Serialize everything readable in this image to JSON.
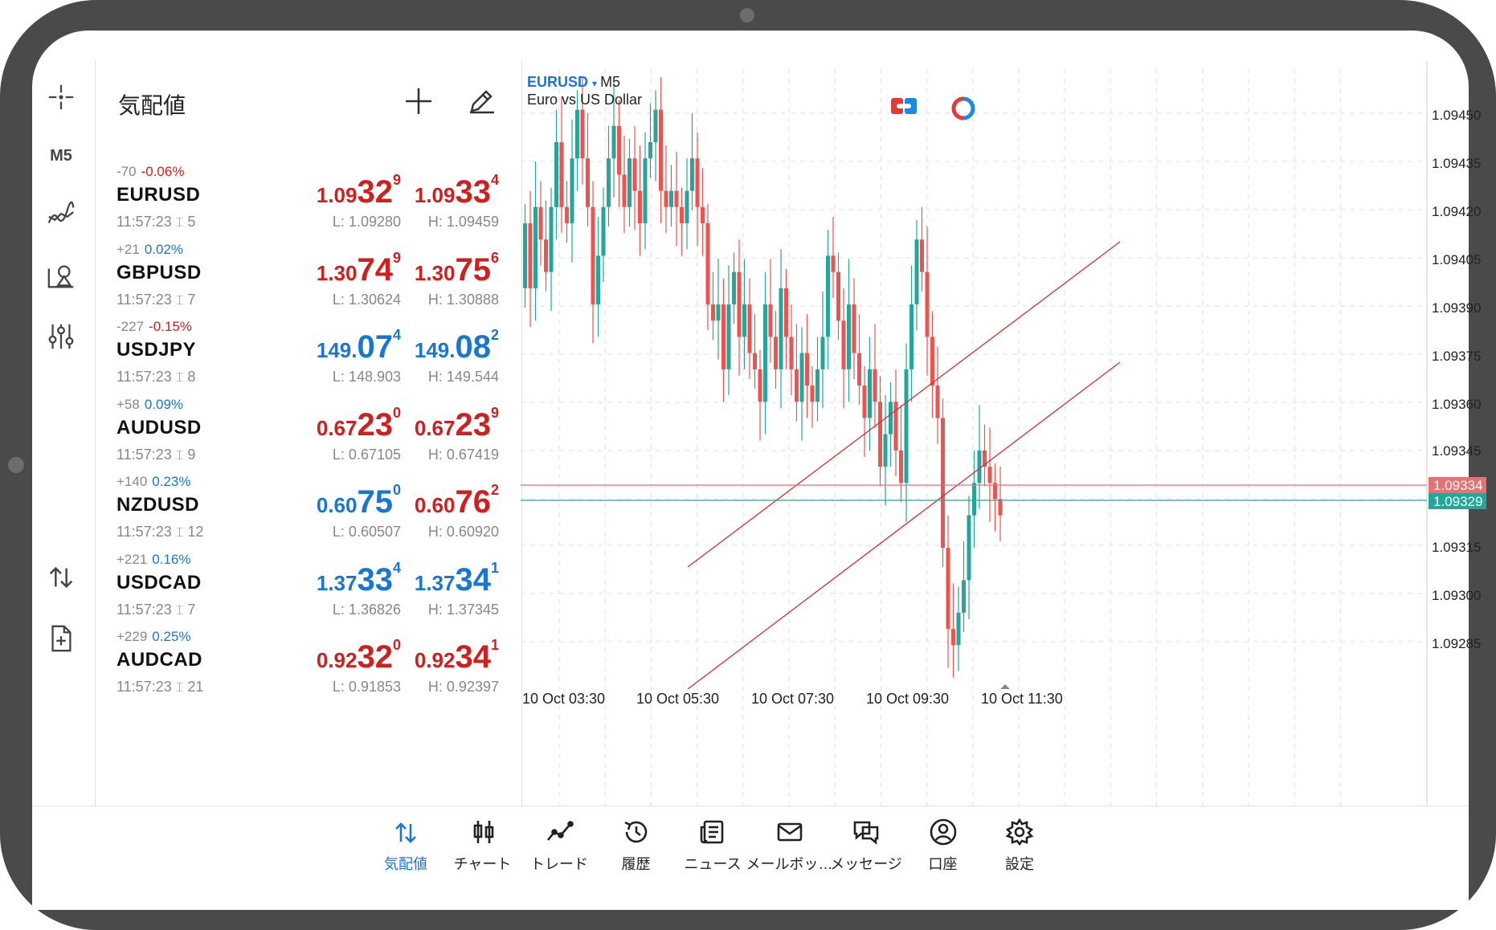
{
  "quotes": {
    "title": "気配値",
    "rows": [
      {
        "change": "-70",
        "pct": "-0.06%",
        "pct_color": "red",
        "symbol": "EURUSD",
        "time": "11:57:23",
        "spread": "5",
        "bid": {
          "a": "1.09",
          "b": "32",
          "c": "9",
          "color": "red"
        },
        "ask": {
          "a": "1.09",
          "b": "33",
          "c": "4",
          "color": "red"
        },
        "low": "L: 1.09280",
        "high": "H: 1.09459"
      },
      {
        "change": "+21",
        "pct": "0.02%",
        "pct_color": "blue",
        "symbol": "GBPUSD",
        "time": "11:57:23",
        "spread": "7",
        "bid": {
          "a": "1.30",
          "b": "74",
          "c": "9",
          "color": "red"
        },
        "ask": {
          "a": "1.30",
          "b": "75",
          "c": "6",
          "color": "red"
        },
        "low": "L: 1.30624",
        "high": "H: 1.30888"
      },
      {
        "change": "-227",
        "pct": "-0.15%",
        "pct_color": "red",
        "symbol": "USDJPY",
        "time": "11:57:23",
        "spread": "8",
        "bid": {
          "a": "149.",
          "b": "07",
          "c": "4",
          "color": "blue"
        },
        "ask": {
          "a": "149.",
          "b": "08",
          "c": "2",
          "color": "blue"
        },
        "low": "L: 148.903",
        "high": "H: 149.544"
      },
      {
        "change": "+58",
        "pct": "0.09%",
        "pct_color": "blue",
        "symbol": "AUDUSD",
        "time": "11:57:23",
        "spread": "9",
        "bid": {
          "a": "0.67",
          "b": "23",
          "c": "0",
          "color": "red"
        },
        "ask": {
          "a": "0.67",
          "b": "23",
          "c": "9",
          "color": "red"
        },
        "low": "L: 0.67105",
        "high": "H: 0.67419"
      },
      {
        "change": "+140",
        "pct": "0.23%",
        "pct_color": "blue",
        "symbol": "NZDUSD",
        "time": "11:57:23",
        "spread": "12",
        "bid": {
          "a": "0.60",
          "b": "75",
          "c": "0",
          "color": "blue"
        },
        "ask": {
          "a": "0.60",
          "b": "76",
          "c": "2",
          "color": "red"
        },
        "low": "L: 0.60507",
        "high": "H: 0.60920"
      },
      {
        "change": "+221",
        "pct": "0.16%",
        "pct_color": "blue",
        "symbol": "USDCAD",
        "time": "11:57:23",
        "spread": "7",
        "bid": {
          "a": "1.37",
          "b": "33",
          "c": "4",
          "color": "blue"
        },
        "ask": {
          "a": "1.37",
          "b": "34",
          "c": "1",
          "color": "blue"
        },
        "low": "L: 1.36826",
        "high": "H: 1.37345"
      },
      {
        "change": "+229",
        "pct": "0.25%",
        "pct_color": "blue",
        "symbol": "AUDCAD",
        "time": "11:57:23",
        "spread": "21",
        "bid": {
          "a": "0.92",
          "b": "32",
          "c": "0",
          "color": "red"
        },
        "ask": {
          "a": "0.92",
          "b": "34",
          "c": "1",
          "color": "red"
        },
        "low": "L: 0.91853",
        "high": "H: 0.92397"
      }
    ]
  },
  "rail": {
    "timeframe": "M5"
  },
  "chart": {
    "symbol": "EURUSD",
    "symbol_arrow": "▾",
    "timeframe": "M5",
    "description": "Euro vs US Dollar",
    "y_labels": [
      "1.09450",
      "1.09435",
      "1.09420",
      "1.09405",
      "1.09390",
      "1.09375",
      "1.09360",
      "1.09345",
      "1.09315",
      "1.09300",
      "1.09285"
    ],
    "ask_label": "1.09334",
    "bid_label": "1.09329",
    "x_labels": [
      "10 Oct 03:30",
      "10 Oct 05:30",
      "10 Oct 07:30",
      "10 Oct 09:30",
      "10 Oct 11:30"
    ],
    "colors": {
      "up": "#26a69a",
      "down": "#ef5350",
      "ask_line": "#e57373",
      "bid_line": "#26a69a",
      "channel": "#d32f2f",
      "grid": "#e0e0e0"
    }
  },
  "chart_data": {
    "type": "candlestick",
    "symbol": "EURUSD",
    "timeframe": "M5",
    "ylim": [
      1.0928,
      1.0946
    ],
    "x_ticks": [
      "10 Oct 03:30",
      "10 Oct 05:30",
      "10 Oct 07:30",
      "10 Oct 09:30",
      "10 Oct 11:30"
    ],
    "current_ask": 1.09334,
    "current_bid": 1.09329
  },
  "nav": {
    "items": [
      {
        "label": "気配値",
        "icon": "quotes-icon",
        "active": true
      },
      {
        "label": "チャート",
        "icon": "chart-icon"
      },
      {
        "label": "トレード",
        "icon": "trade-icon"
      },
      {
        "label": "履歴",
        "icon": "history-icon"
      },
      {
        "label": "ニュース",
        "icon": "news-icon"
      },
      {
        "label": "メールボッ…",
        "icon": "mail-icon"
      },
      {
        "label": "メッセージ",
        "icon": "messages-icon"
      },
      {
        "label": "口座",
        "icon": "account-icon"
      },
      {
        "label": "設定",
        "icon": "settings-icon"
      }
    ]
  }
}
